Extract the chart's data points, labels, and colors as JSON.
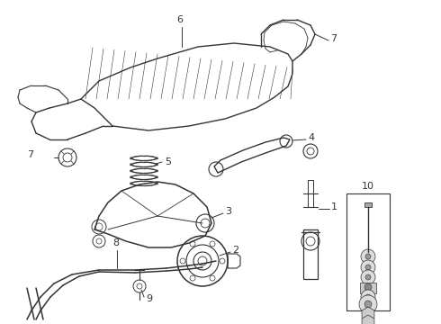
{
  "bg_color": "#ffffff",
  "line_color": "#333333",
  "fig_width": 4.9,
  "fig_height": 3.6,
  "dpi": 100,
  "xlim": [
    0,
    490
  ],
  "ylim": [
    0,
    360
  ]
}
